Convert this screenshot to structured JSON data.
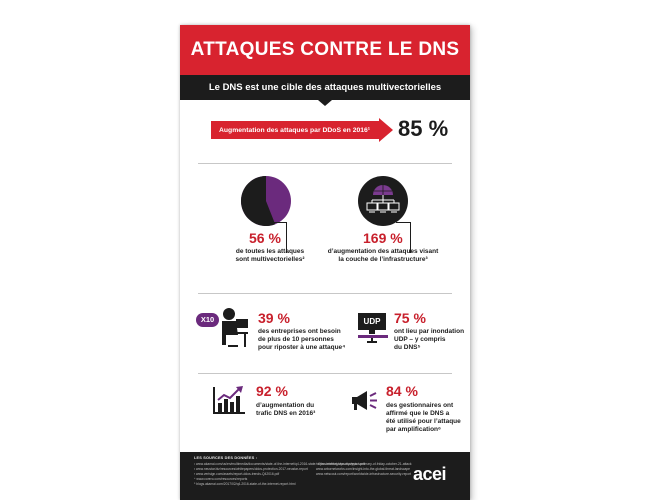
{
  "header": {
    "title": "ATTAQUES CONTRE LE DNS",
    "subtitle": "Le DNS est une cible des attaques multivectorielles"
  },
  "ddos": {
    "label": "Augmentation des attaques par DDoS en 2016¹",
    "value": "85 %"
  },
  "stats": {
    "multivector": {
      "value": "56 %",
      "text_1": "de toutes les attaques",
      "text_2": "sont multivectorielles²",
      "fraction": 0.56
    },
    "infra": {
      "value": "169 %",
      "text_1": "d’augmentation des attaques visant",
      "text_2": "la couche de l’infrastructure³"
    },
    "people": {
      "badge": "X10",
      "value": "39 %",
      "text_1": "des entreprises ont besoin",
      "text_2": "de plus de 10 personnes",
      "text_3": "pour riposter à une attaque⁴"
    },
    "udp": {
      "badge": "UDP",
      "value": "75 %",
      "text_1": "ont lieu par inondation",
      "text_2": "UDP – y compris",
      "text_3": "du DNS⁵"
    },
    "traffic": {
      "value": "92 %",
      "text_1": "d’augmentation du",
      "text_2": "trafic DNS en 2016³"
    },
    "amplification": {
      "value": "84 %",
      "text_1": "des gestionnaires ont",
      "text_2": "affirmé que le DNS a",
      "text_3": "été utilisé pour l’attaque",
      "text_4": "par amplification⁶"
    }
  },
  "footer": {
    "heading": "LES SOURCES DES DONNÉES :",
    "notes_left": [
      "¹ www.akamai.com/us/en/multimedia/documents/state-of-the-internet/q4-2016-state-of-the-internet-security-report.pdf",
      "² www.neustar.biz/resources/whitepapers/ddos-protection-2017-neustar-report",
      "³ www.verisign.com/assets/report-ddos-trends-Q42016.pdf",
      "⁴ www.corero.com/resources/reports",
      "⁵ blogs.akamai.com/2017/02/q4-2016-state-of-the-internet-report.html"
    ],
    "notes_right": [
      "⁶ dyn.com/blog/dyn-analysis-summary-of-friday-october-21-attack",
      "www.arbornetworks.com/insight-into-the-global-threat-landscape",
      "www.netscout.com/report/worldwide-infrastructure-security-report"
    ],
    "logo": "acei"
  },
  "colors": {
    "red": "#d8232f",
    "dark": "#1c1c1c",
    "purple": "#6b2a7d"
  }
}
